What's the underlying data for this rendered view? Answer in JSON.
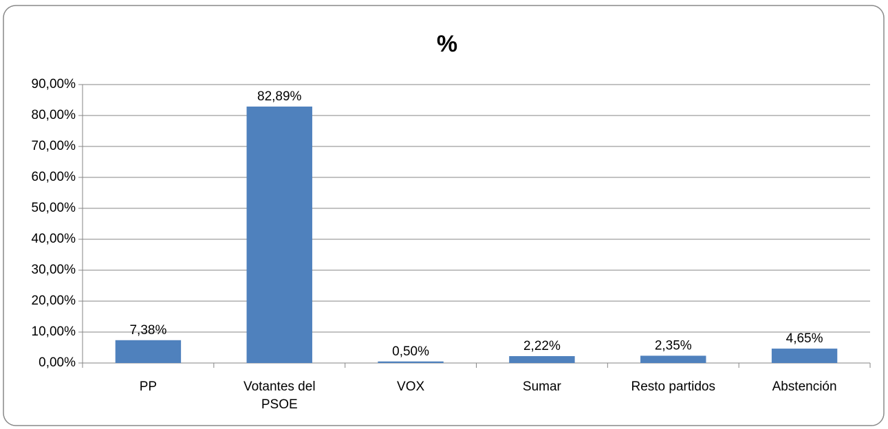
{
  "chart_data": {
    "type": "bar",
    "title": "%",
    "categories": [
      "PP",
      "Votantes del PSOE",
      "VOX",
      "Sumar",
      "Resto partidos",
      "Abstención"
    ],
    "values": [
      7.38,
      82.89,
      0.5,
      2.22,
      2.35,
      4.65
    ],
    "value_labels": [
      "7,38%",
      "82,89%",
      "0,50%",
      "2,22%",
      "2,35%",
      "4,65%"
    ],
    "color": "#4f81bd",
    "ylim": [
      0,
      90
    ],
    "yticks": [
      {
        "value": 0,
        "label": "0,00%"
      },
      {
        "value": 10,
        "label": "10,00%"
      },
      {
        "value": 20,
        "label": "20,00%"
      },
      {
        "value": 30,
        "label": "30,00%"
      },
      {
        "value": 40,
        "label": "40,00%"
      },
      {
        "value": 50,
        "label": "50,00%"
      },
      {
        "value": 60,
        "label": "60,00%"
      },
      {
        "value": 70,
        "label": "70,00%"
      },
      {
        "value": 80,
        "label": "80,00%"
      },
      {
        "value": 90,
        "label": "90,00%"
      }
    ],
    "grid": true
  }
}
